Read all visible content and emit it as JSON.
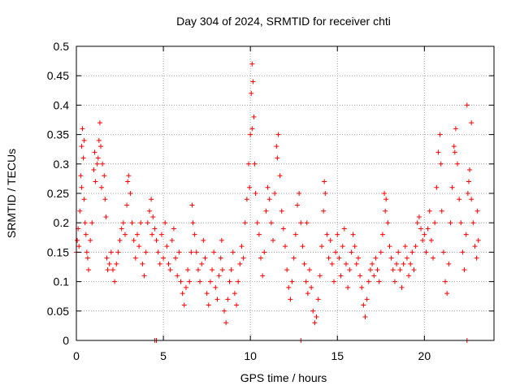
{
  "chart_data": {
    "type": "scatter",
    "title": "Day 304 of 2024, SRMTID for receiver chti",
    "xlabel": "GPS time / hours",
    "ylabel": "SRMTID / TECUs",
    "xlim": [
      0,
      24
    ],
    "ylim": [
      0,
      0.5
    ],
    "xticks": [
      0,
      5,
      10,
      15,
      20
    ],
    "xtick_labels": [
      "0",
      "5",
      "10",
      "15",
      "20"
    ],
    "yticks": [
      0,
      0.05,
      0.1,
      0.15,
      0.2,
      0.25,
      0.3,
      0.35,
      0.4,
      0.45,
      0.5
    ],
    "ytick_labels": [
      "0",
      "0.05",
      "0.1",
      "0.15",
      "0.2",
      "0.25",
      "0.3",
      "0.35",
      "0.4",
      "0.45",
      "0.5"
    ],
    "grid": true,
    "marker": "plus",
    "color": "#ff0000",
    "series": [
      {
        "name": "SRMTID",
        "points": [
          [
            0.0,
            0.15
          ],
          [
            0.05,
            0.17
          ],
          [
            0.1,
            0.19
          ],
          [
            0.15,
            0.16
          ],
          [
            0.2,
            0.22
          ],
          [
            0.25,
            0.28
          ],
          [
            0.3,
            0.33
          ],
          [
            0.35,
            0.36
          ],
          [
            0.4,
            0.31
          ],
          [
            0.45,
            0.24
          ],
          [
            0.5,
            0.2
          ],
          [
            0.55,
            0.18
          ],
          [
            0.6,
            0.15
          ],
          [
            0.65,
            0.14
          ],
          [
            0.7,
            0.12
          ],
          [
            0.8,
            0.17
          ],
          [
            0.9,
            0.2
          ],
          [
            1.0,
            0.29
          ],
          [
            1.05,
            0.32
          ],
          [
            1.1,
            0.27
          ],
          [
            1.2,
            0.3
          ],
          [
            1.3,
            0.34
          ],
          [
            1.35,
            0.37
          ],
          [
            1.4,
            0.33
          ],
          [
            1.5,
            0.3
          ],
          [
            1.6,
            0.28
          ],
          [
            1.65,
            0.24
          ],
          [
            1.7,
            0.21
          ],
          [
            1.75,
            0.14
          ],
          [
            1.8,
            0.12
          ],
          [
            1.9,
            0.13
          ],
          [
            2.0,
            0.15
          ],
          [
            2.1,
            0.12
          ],
          [
            2.2,
            0.1
          ],
          [
            2.3,
            0.13
          ],
          [
            2.4,
            0.15
          ],
          [
            2.5,
            0.17
          ],
          [
            2.6,
            0.19
          ],
          [
            2.7,
            0.2
          ],
          [
            2.8,
            0.18
          ],
          [
            2.9,
            0.23
          ],
          [
            3.0,
            0.28
          ],
          [
            3.1,
            0.25
          ],
          [
            3.2,
            0.2
          ],
          [
            3.3,
            0.17
          ],
          [
            3.4,
            0.14
          ],
          [
            3.5,
            0.18
          ],
          [
            3.6,
            0.16
          ],
          [
            3.7,
            0.2
          ],
          [
            3.8,
            0.13
          ],
          [
            3.9,
            0.11
          ],
          [
            4.0,
            0.15
          ],
          [
            4.1,
            0.2
          ],
          [
            4.2,
            0.22
          ],
          [
            4.3,
            0.24
          ],
          [
            4.4,
            0.21
          ],
          [
            4.5,
            0.19
          ],
          [
            4.6,
            0.17
          ],
          [
            4.7,
            0.15
          ],
          [
            4.8,
            0.13
          ],
          [
            4.9,
            0.18
          ],
          [
            5.0,
            0.14
          ],
          [
            5.1,
            0.2
          ],
          [
            5.2,
            0.16
          ],
          [
            5.3,
            0.13
          ],
          [
            5.4,
            0.12
          ],
          [
            5.5,
            0.17
          ],
          [
            5.6,
            0.19
          ],
          [
            5.7,
            0.14
          ],
          [
            5.8,
            0.11
          ],
          [
            5.9,
            0.15
          ],
          [
            6.0,
            0.1
          ],
          [
            6.1,
            0.08
          ],
          [
            6.2,
            0.06
          ],
          [
            6.3,
            0.09
          ],
          [
            6.4,
            0.12
          ],
          [
            6.5,
            0.1
          ],
          [
            6.6,
            0.15
          ],
          [
            6.7,
            0.2
          ],
          [
            6.8,
            0.18
          ],
          [
            6.9,
            0.15
          ],
          [
            7.0,
            0.12
          ],
          [
            7.1,
            0.1
          ],
          [
            7.2,
            0.13
          ],
          [
            7.3,
            0.17
          ],
          [
            7.4,
            0.14
          ],
          [
            7.5,
            0.08
          ],
          [
            7.6,
            0.06
          ],
          [
            7.7,
            0.1
          ],
          [
            7.8,
            0.12
          ],
          [
            7.9,
            0.15
          ],
          [
            8.0,
            0.09
          ],
          [
            8.1,
            0.07
          ],
          [
            8.2,
            0.11
          ],
          [
            8.3,
            0.14
          ],
          [
            8.4,
            0.12
          ],
          [
            8.5,
            0.05
          ],
          [
            8.6,
            0.03
          ],
          [
            8.7,
            0.07
          ],
          [
            8.8,
            0.1
          ],
          [
            8.9,
            0.12
          ],
          [
            9.0,
            0.15
          ],
          [
            9.1,
            0.08
          ],
          [
            9.2,
            0.06
          ],
          [
            9.3,
            0.1
          ],
          [
            9.4,
            0.13
          ],
          [
            9.5,
            0.16
          ],
          [
            9.6,
            0.14
          ],
          [
            9.7,
            0.2
          ],
          [
            9.8,
            0.24
          ],
          [
            9.9,
            0.3
          ],
          [
            10.0,
            0.35
          ],
          [
            10.05,
            0.42
          ],
          [
            10.1,
            0.47
          ],
          [
            10.15,
            0.44
          ],
          [
            10.2,
            0.38
          ],
          [
            10.25,
            0.3
          ],
          [
            10.3,
            0.25
          ],
          [
            10.4,
            0.2
          ],
          [
            10.5,
            0.18
          ],
          [
            10.6,
            0.14
          ],
          [
            10.7,
            0.11
          ],
          [
            10.8,
            0.15
          ],
          [
            10.9,
            0.22
          ],
          [
            11.0,
            0.26
          ],
          [
            11.1,
            0.24
          ],
          [
            11.2,
            0.2
          ],
          [
            11.3,
            0.17
          ],
          [
            11.4,
            0.25
          ],
          [
            11.5,
            0.33
          ],
          [
            11.6,
            0.35
          ],
          [
            11.7,
            0.28
          ],
          [
            11.8,
            0.22
          ],
          [
            11.9,
            0.19
          ],
          [
            12.0,
            0.16
          ],
          [
            12.1,
            0.12
          ],
          [
            12.2,
            0.09
          ],
          [
            12.3,
            0.07
          ],
          [
            12.4,
            0.1
          ],
          [
            12.5,
            0.14
          ],
          [
            12.6,
            0.18
          ],
          [
            12.7,
            0.23
          ],
          [
            12.8,
            0.25
          ],
          [
            12.9,
            0.2
          ],
          [
            13.0,
            0.16
          ],
          [
            13.1,
            0.13
          ],
          [
            13.2,
            0.1
          ],
          [
            13.3,
            0.08
          ],
          [
            13.4,
            0.12
          ],
          [
            13.5,
            0.09
          ],
          [
            13.6,
            0.05
          ],
          [
            13.7,
            0.03
          ],
          [
            13.8,
            0.04
          ],
          [
            13.9,
            0.07
          ],
          [
            14.0,
            0.11
          ],
          [
            14.1,
            0.16
          ],
          [
            14.2,
            0.22
          ],
          [
            14.3,
            0.25
          ],
          [
            14.4,
            0.18
          ],
          [
            14.5,
            0.14
          ],
          [
            14.6,
            0.17
          ],
          [
            14.7,
            0.13
          ],
          [
            14.8,
            0.1
          ],
          [
            14.9,
            0.15
          ],
          [
            15.0,
            0.18
          ],
          [
            15.1,
            0.14
          ],
          [
            15.2,
            0.11
          ],
          [
            15.3,
            0.16
          ],
          [
            15.4,
            0.19
          ],
          [
            15.5,
            0.13
          ],
          [
            15.6,
            0.09
          ],
          [
            15.7,
            0.12
          ],
          [
            15.8,
            0.15
          ],
          [
            15.9,
            0.18
          ],
          [
            16.0,
            0.16
          ],
          [
            16.1,
            0.13
          ],
          [
            16.2,
            0.14
          ],
          [
            16.3,
            0.11
          ],
          [
            16.4,
            0.09
          ],
          [
            16.5,
            0.06
          ],
          [
            16.6,
            0.04
          ],
          [
            16.7,
            0.07
          ],
          [
            16.8,
            0.1
          ],
          [
            16.9,
            0.12
          ],
          [
            17.0,
            0.13
          ],
          [
            17.1,
            0.11
          ],
          [
            17.2,
            0.14
          ],
          [
            17.3,
            0.12
          ],
          [
            17.4,
            0.1
          ],
          [
            17.5,
            0.15
          ],
          [
            17.6,
            0.18
          ],
          [
            17.7,
            0.25
          ],
          [
            17.8,
            0.24
          ],
          [
            17.9,
            0.2
          ],
          [
            18.0,
            0.16
          ],
          [
            18.1,
            0.14
          ],
          [
            18.2,
            0.12
          ],
          [
            18.3,
            0.1
          ],
          [
            18.4,
            0.13
          ],
          [
            18.5,
            0.15
          ],
          [
            18.6,
            0.12
          ],
          [
            18.7,
            0.09
          ],
          [
            18.8,
            0.13
          ],
          [
            18.9,
            0.16
          ],
          [
            19.0,
            0.14
          ],
          [
            19.1,
            0.11
          ],
          [
            19.2,
            0.13
          ],
          [
            19.3,
            0.15
          ],
          [
            19.4,
            0.12
          ],
          [
            19.5,
            0.16
          ],
          [
            19.6,
            0.2
          ],
          [
            19.7,
            0.21
          ],
          [
            19.8,
            0.19
          ],
          [
            19.9,
            0.17
          ],
          [
            20.0,
            0.18
          ],
          [
            20.1,
            0.15
          ],
          [
            20.2,
            0.19
          ],
          [
            20.3,
            0.22
          ],
          [
            20.4,
            0.17
          ],
          [
            20.5,
            0.14
          ],
          [
            20.6,
            0.2
          ],
          [
            20.7,
            0.26
          ],
          [
            20.8,
            0.32
          ],
          [
            20.9,
            0.35
          ],
          [
            21.0,
            0.22
          ],
          [
            21.1,
            0.15
          ],
          [
            21.2,
            0.1
          ],
          [
            21.3,
            0.08
          ],
          [
            21.4,
            0.13
          ],
          [
            21.5,
            0.2
          ],
          [
            21.6,
            0.26
          ],
          [
            21.7,
            0.33
          ],
          [
            21.8,
            0.36
          ],
          [
            21.9,
            0.3
          ],
          [
            22.0,
            0.24
          ],
          [
            22.1,
            0.2
          ],
          [
            22.2,
            0.15
          ],
          [
            22.3,
            0.12
          ],
          [
            22.4,
            0.18
          ],
          [
            22.5,
            0.25
          ],
          [
            22.6,
            0.29
          ],
          [
            22.7,
            0.24
          ],
          [
            22.8,
            0.2
          ],
          [
            22.9,
            0.16
          ],
          [
            23.0,
            0.14
          ],
          [
            23.1,
            0.17
          ],
          [
            0.3,
            0.26
          ],
          [
            0.45,
            0.34
          ],
          [
            1.25,
            0.31
          ],
          [
            1.45,
            0.26
          ],
          [
            2.95,
            0.27
          ],
          [
            4.35,
            0.18
          ],
          [
            6.65,
            0.23
          ],
          [
            8.35,
            0.17
          ],
          [
            9.95,
            0.26
          ],
          [
            10.1,
            0.36
          ],
          [
            11.55,
            0.31
          ],
          [
            13.25,
            0.2
          ],
          [
            14.25,
            0.27
          ],
          [
            17.75,
            0.22
          ],
          [
            20.95,
            0.3
          ],
          [
            21.75,
            0.32
          ],
          [
            22.55,
            0.27
          ],
          [
            22.7,
            0.37
          ],
          [
            22.45,
            0.4
          ],
          [
            23.05,
            0.22
          ],
          [
            4.5,
            0.0
          ],
          [
            4.6,
            0.0
          ],
          [
            12.9,
            0.0
          ],
          [
            22.45,
            0.0
          ]
        ]
      }
    ]
  }
}
